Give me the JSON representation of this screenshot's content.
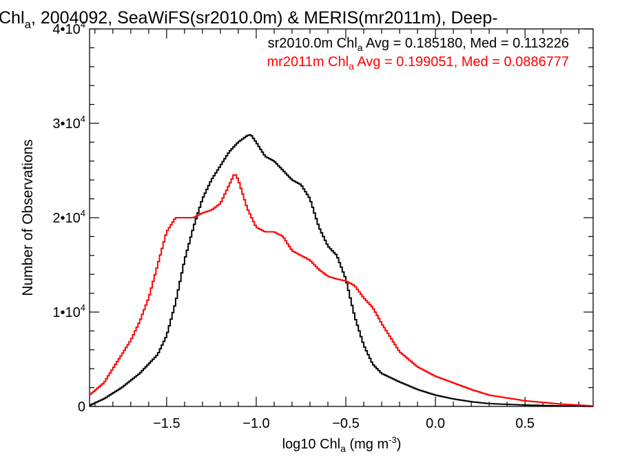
{
  "chart_data": {
    "type": "line",
    "title": {
      "pre": "Chl",
      "sub": "a",
      "post": ", 2004092, SeaWiFS(sr2010.0m) & MERIS(mr2011m), Deep-"
    },
    "xlabel": {
      "pre": "log10 Chl",
      "sub": "a",
      "mid": " (mg m",
      "sup": "-3",
      "post": ")"
    },
    "ylabel": "Number of Observations",
    "xlim": [
      -1.93,
      0.88
    ],
    "ylim": [
      0,
      40000
    ],
    "x_ticks": [
      {
        "value": -1.5,
        "label": "−1.5"
      },
      {
        "value": -1.0,
        "label": "−1.0"
      },
      {
        "value": -0.5,
        "label": "−0.5"
      },
      {
        "value": 0.0,
        "label": "0.0"
      },
      {
        "value": 0.5,
        "label": "0.5"
      }
    ],
    "y_ticks": [
      {
        "value": 0,
        "label": "0",
        "sup": ""
      },
      {
        "value": 10000,
        "label": "1•10",
        "sup": "4"
      },
      {
        "value": 20000,
        "label": "2•10",
        "sup": "4"
      },
      {
        "value": 30000,
        "label": "3•10",
        "sup": "4"
      },
      {
        "value": 40000,
        "label": "4•10",
        "sup": "4"
      }
    ],
    "legend_position": "top-right",
    "series": [
      {
        "legend": {
          "pre": "sr2010.0m Chl",
          "sub": "a",
          "post": " Avg = 0.185180, Med = 0.113226"
        },
        "color": "#000000",
        "x": [
          -1.93,
          -1.85,
          -1.75,
          -1.65,
          -1.55,
          -1.5,
          -1.45,
          -1.4,
          -1.35,
          -1.3,
          -1.25,
          -1.2,
          -1.15,
          -1.1,
          -1.05,
          -1.03,
          -1.0,
          -0.95,
          -0.9,
          -0.85,
          -0.8,
          -0.75,
          -0.7,
          -0.65,
          -0.6,
          -0.55,
          -0.5,
          -0.45,
          -0.4,
          -0.35,
          -0.3,
          -0.2,
          -0.1,
          0.0,
          0.1,
          0.2,
          0.3,
          0.5,
          0.7,
          0.88
        ],
        "y": [
          100,
          800,
          2000,
          3500,
          5500,
          7500,
          11000,
          15500,
          19000,
          22000,
          24000,
          25500,
          27000,
          28000,
          28700,
          28800,
          28000,
          26500,
          26000,
          25000,
          24000,
          23500,
          22000,
          19000,
          17000,
          16000,
          13500,
          9500,
          6500,
          4500,
          3500,
          2600,
          1800,
          1200,
          800,
          500,
          300,
          150,
          60,
          20
        ]
      },
      {
        "legend": {
          "pre": "mr2011m Chl",
          "sub": "a",
          "post": " Avg = 0.199051, Med = 0.0886777"
        },
        "color": "#ff0000",
        "x": [
          -1.93,
          -1.85,
          -1.8,
          -1.75,
          -1.7,
          -1.65,
          -1.6,
          -1.55,
          -1.5,
          -1.45,
          -1.4,
          -1.35,
          -1.3,
          -1.25,
          -1.2,
          -1.15,
          -1.12,
          -1.1,
          -1.05,
          -1.0,
          -0.95,
          -0.9,
          -0.85,
          -0.8,
          -0.75,
          -0.7,
          -0.65,
          -0.6,
          -0.55,
          -0.5,
          -0.45,
          -0.4,
          -0.35,
          -0.3,
          -0.2,
          -0.1,
          0.0,
          0.1,
          0.2,
          0.3,
          0.5,
          0.7,
          0.88
        ],
        "y": [
          1200,
          2500,
          4000,
          5500,
          7000,
          9000,
          11500,
          15000,
          18500,
          20000,
          20000,
          20000,
          20500,
          20800,
          21500,
          23500,
          24700,
          24000,
          21000,
          19000,
          18500,
          18500,
          18000,
          16500,
          16000,
          15500,
          14500,
          13800,
          13500,
          13300,
          12800,
          11500,
          10500,
          8800,
          5800,
          4200,
          3200,
          2500,
          1800,
          1200,
          600,
          250,
          60
        ]
      }
    ]
  }
}
